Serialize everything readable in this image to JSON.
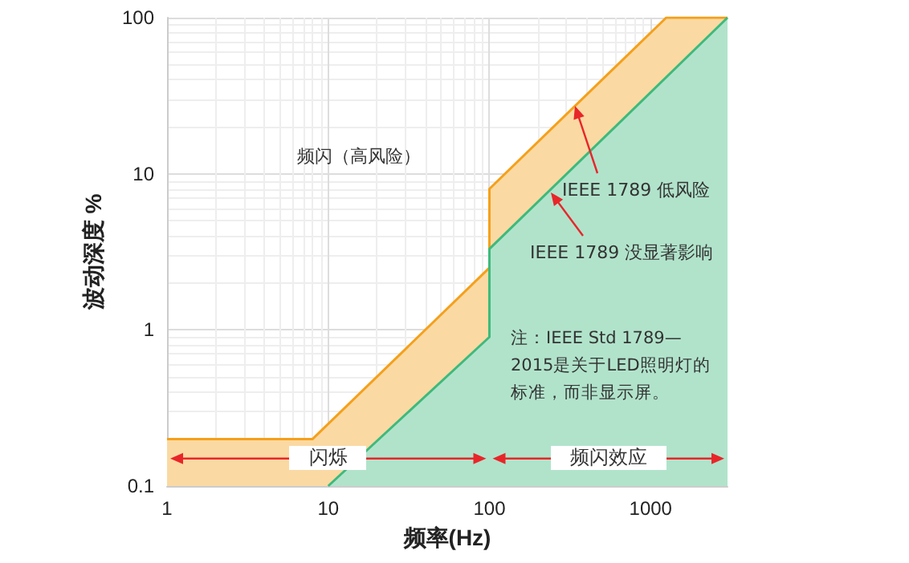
{
  "chart_data": {
    "type": "area",
    "xlabel": "频率(Hz)",
    "ylabel": "波动深度 %",
    "series": [
      {
        "color": "#f5a01a",
        "x": [
          1,
          8,
          100,
          100,
          1250,
          3000
        ],
        "values": [
          0.2,
          0.2,
          2.5,
          8,
          100,
          100
        ]
      },
      {
        "color": "#3dba7c",
        "x": [
          10,
          100,
          100,
          3000
        ],
        "values": [
          0.1,
          0.9,
          3.3,
          100
        ]
      }
    ],
    "xlim": [
      1,
      3000
    ],
    "xticks": [
      1,
      10,
      100,
      1000
    ],
    "ylim": [
      0.1,
      100
    ],
    "yticks": [
      0.1,
      1,
      10,
      100
    ],
    "log": "xy",
    "grid": true,
    "marker": "none",
    "line_style": "solid",
    "annotations": [
      "频闪（高风险）",
      "IEEE 1789 低风险",
      "IEEE 1789 没显著影响",
      "注：IEEE Std 1789—2015是关于LED照明灯的标准，而非显示屏。",
      "闪烁",
      "频闪效应"
    ]
  }
}
